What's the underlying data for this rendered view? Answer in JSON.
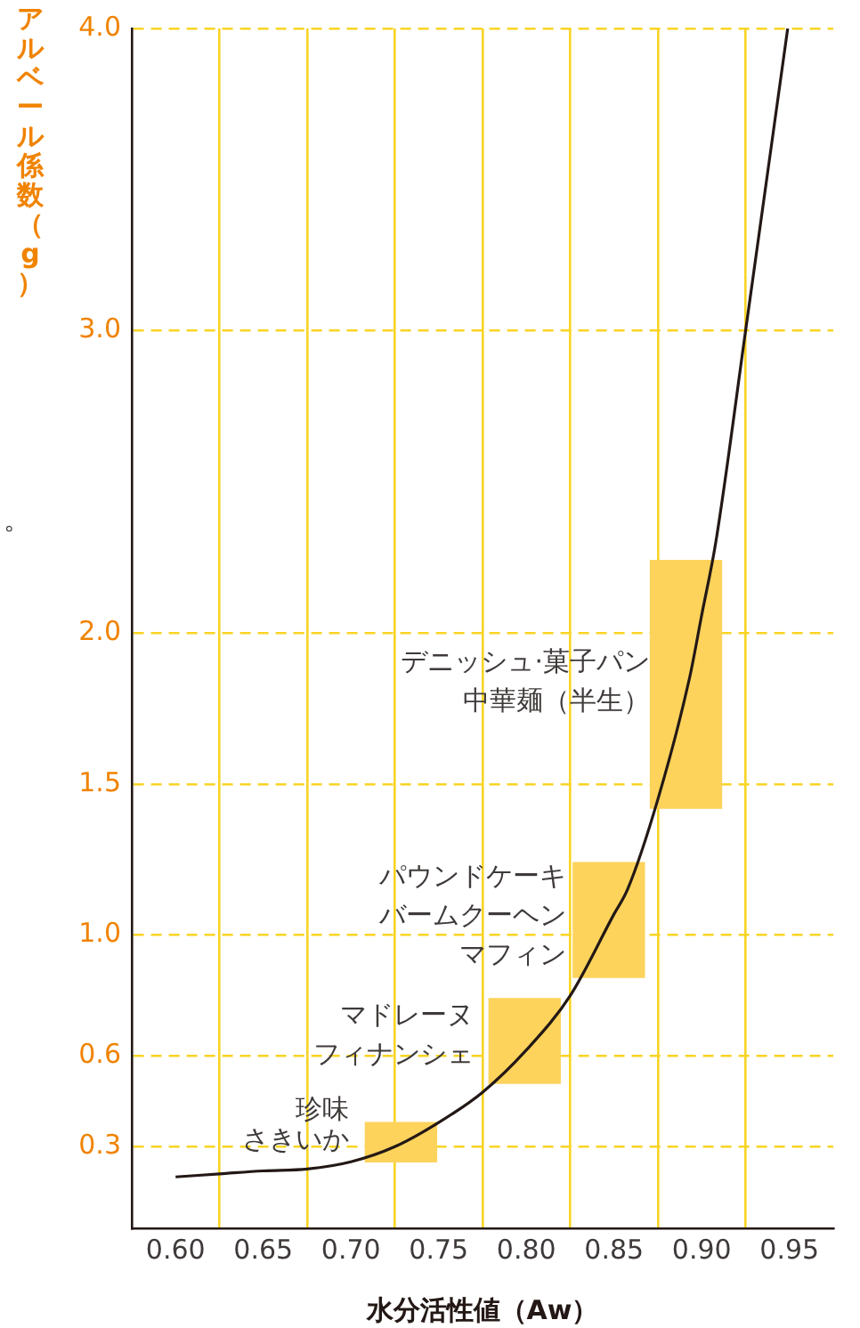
{
  "chart_data": {
    "type": "line",
    "xlabel": "水分活性値（Aw）",
    "ylabel": "アルベール係数（g）",
    "xlim": [
      0.575,
      0.975
    ],
    "ylim": [
      0.03,
      4.0
    ],
    "xticks": [
      {
        "value": 0.6,
        "label": "0.60"
      },
      {
        "value": 0.625,
        "label": null
      },
      {
        "value": 0.65,
        "label": "0.65"
      },
      {
        "value": 0.675,
        "label": null
      },
      {
        "value": 0.7,
        "label": "0.70"
      },
      {
        "value": 0.725,
        "label": null
      },
      {
        "value": 0.75,
        "label": "0.75"
      },
      {
        "value": 0.775,
        "label": null
      },
      {
        "value": 0.8,
        "label": "0.80"
      },
      {
        "value": 0.825,
        "label": null
      },
      {
        "value": 0.85,
        "label": "0.85"
      },
      {
        "value": 0.875,
        "label": null
      },
      {
        "value": 0.9,
        "label": "0.90"
      },
      {
        "value": 0.925,
        "label": null
      },
      {
        "value": 0.95,
        "label": "0.95"
      }
    ],
    "yticks": [
      0.3,
      0.6,
      {
        "value": 1.0,
        "label": "1.0"
      },
      1.5,
      {
        "value": 2.0,
        "label": "2.0"
      },
      {
        "value": 3.0,
        "label": "3.0"
      },
      {
        "value": 4.0,
        "label": "4.0"
      }
    ],
    "grid": true,
    "marker": "none",
    "series": [
      {
        "color": "#231815",
        "x": [
          0.6,
          0.625,
          0.65,
          0.675,
          0.7,
          0.725,
          0.75,
          0.775,
          0.8,
          0.825,
          0.85,
          0.8576,
          0.875,
          0.893,
          0.9,
          0.908,
          0.925,
          0.949
        ],
        "values": [
          0.2,
          0.21,
          0.22,
          0.226,
          0.25,
          0.3,
          0.38,
          0.48,
          0.62,
          0.8,
          1.07,
          1.15,
          1.45,
          1.85,
          2.06,
          2.3,
          3.0,
          4.0
        ]
      },
      {
        "type": "bar",
        "color": "#fdd35c",
        "x": [
          0.7285,
          0.799,
          0.847,
          0.891
        ],
        "base": [
          0.25,
          0.51,
          0.86,
          1.42
        ],
        "values": [
          0.13,
          0.28,
          0.38,
          0.82
        ]
      }
    ],
    "annotations": [
      "珍味",
      "さきいか",
      "マドレーヌ",
      "フィナンシェ",
      "パウンドケーキ",
      "バームクーヘン",
      "マフィン",
      "デニッシュ·菓子パン",
      "中華麺（半生）",
      "。"
    ]
  }
}
